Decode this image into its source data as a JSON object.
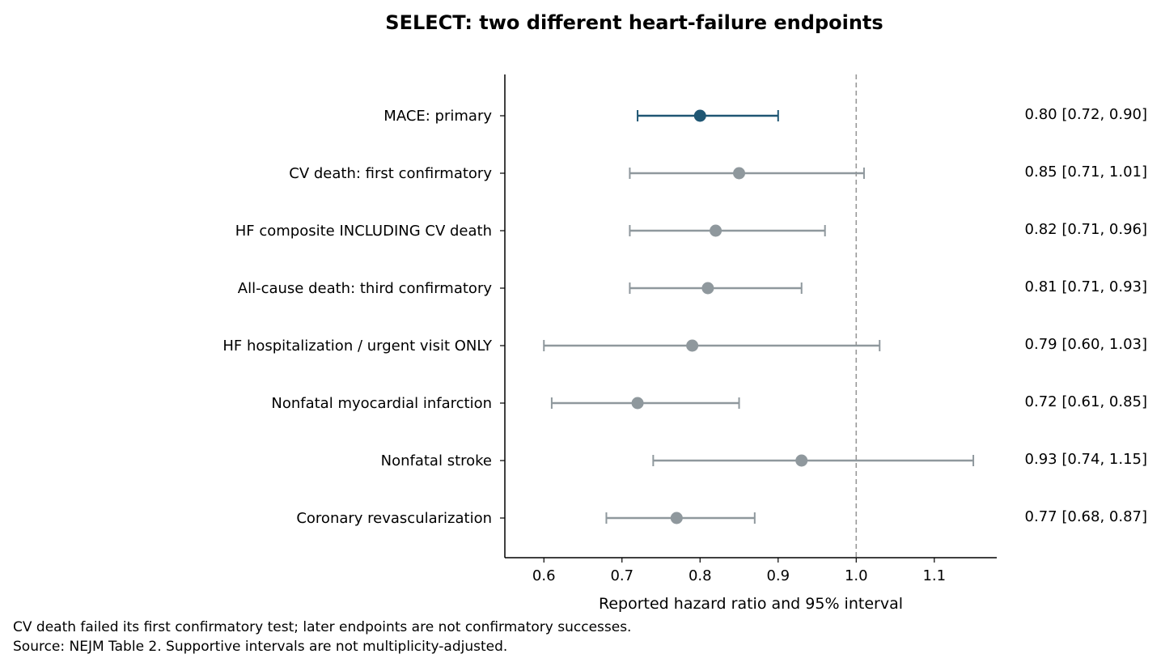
{
  "chart_data": {
    "type": "forest",
    "title": "SELECT: two different heart-failure endpoints",
    "xlabel": "Reported hazard ratio and 95% interval",
    "ylabel": "",
    "xlim": [
      0.55,
      1.18
    ],
    "xticks": [
      0.6,
      0.7,
      0.8,
      0.9,
      1.0,
      1.1
    ],
    "xtick_labels": [
      "0.6",
      "0.7",
      "0.8",
      "0.9",
      "1.0",
      "1.1"
    ],
    "reference_line": 1.0,
    "grid": false,
    "colors": {
      "highlight": "#1f5673",
      "other": "#8f989d",
      "reference": "#999999"
    },
    "rows": [
      {
        "label": "MACE: primary",
        "hr": 0.8,
        "lo": 0.72,
        "hi": 0.9,
        "text": "0.80 [0.72, 0.90]",
        "highlight": true
      },
      {
        "label": "CV death: first confirmatory",
        "hr": 0.85,
        "lo": 0.71,
        "hi": 1.01,
        "text": "0.85 [0.71, 1.01]",
        "highlight": false
      },
      {
        "label": "HF composite INCLUDING CV death",
        "hr": 0.82,
        "lo": 0.71,
        "hi": 0.96,
        "text": "0.82 [0.71, 0.96]",
        "highlight": false
      },
      {
        "label": "All-cause death: third confirmatory",
        "hr": 0.81,
        "lo": 0.71,
        "hi": 0.93,
        "text": "0.81 [0.71, 0.93]",
        "highlight": false
      },
      {
        "label": "HF hospitalization / urgent visit ONLY",
        "hr": 0.79,
        "lo": 0.6,
        "hi": 1.03,
        "text": "0.79 [0.60, 1.03]",
        "highlight": false
      },
      {
        "label": "Nonfatal myocardial infarction",
        "hr": 0.72,
        "lo": 0.61,
        "hi": 0.85,
        "text": "0.72 [0.61, 0.85]",
        "highlight": false
      },
      {
        "label": "Nonfatal stroke",
        "hr": 0.93,
        "lo": 0.74,
        "hi": 1.15,
        "text": "0.93 [0.74, 1.15]",
        "highlight": false
      },
      {
        "label": "Coronary revascularization",
        "hr": 0.77,
        "lo": 0.68,
        "hi": 0.87,
        "text": "0.77 [0.68, 0.87]",
        "highlight": false
      }
    ],
    "footnotes": [
      "CV death failed its first confirmatory test; later endpoints are not confirmatory successes.",
      "Source: NEJM Table 2. Supportive intervals are not multiplicity-adjusted."
    ]
  }
}
